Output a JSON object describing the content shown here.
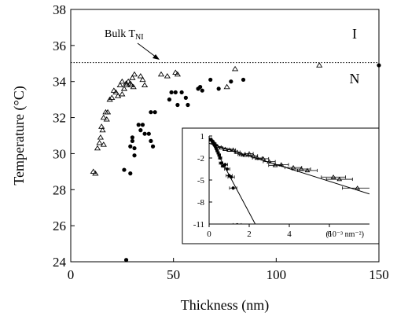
{
  "chart_data": [
    {
      "type": "scatter",
      "title": "",
      "xlabel": "Thickness (nm)",
      "ylabel": "Temperature (°C)",
      "xlim": [
        0,
        150
      ],
      "ylim": [
        24,
        38
      ],
      "xticks": [
        0,
        50,
        100,
        150
      ],
      "yticks": [
        24,
        26,
        28,
        30,
        32,
        34,
        36,
        38
      ],
      "grid": false,
      "reference_line": {
        "y": 35.05,
        "style": "dotted",
        "label_main": "Bulk T",
        "label_sub": "NI"
      },
      "region_labels": [
        "I",
        "N"
      ],
      "series": [
        {
          "marker": "open-triangle",
          "x": [
            11,
            12,
            13,
            14,
            14.5,
            15,
            15.5,
            16,
            16,
            17,
            17.5,
            18,
            19,
            20,
            21,
            22,
            23,
            24,
            25,
            25,
            26,
            27,
            27,
            28,
            29,
            29.5,
            30,
            30.5,
            31,
            34,
            35,
            36,
            44,
            47,
            51,
            52,
            76,
            80,
            121
          ],
          "y": [
            29.0,
            28.9,
            30.3,
            30.6,
            30.9,
            31.5,
            31.3,
            30.5,
            32.0,
            32.3,
            31.9,
            32.3,
            33.0,
            33.1,
            33.5,
            33.4,
            33.2,
            33.8,
            33.3,
            34.0,
            33.6,
            33.8,
            33.9,
            34.0,
            33.9,
            33.8,
            34.2,
            33.7,
            34.4,
            34.3,
            34.1,
            33.8,
            34.4,
            34.3,
            34.5,
            34.4,
            33.7,
            34.7,
            34.9
          ]
        },
        {
          "marker": "filled-circle",
          "x": [
            26,
            27,
            29,
            29,
            30,
            30,
            31,
            31,
            33,
            34,
            35,
            36,
            38,
            39,
            39,
            40,
            41,
            48,
            49,
            51,
            52,
            54,
            56,
            57,
            62,
            63,
            64,
            68,
            72,
            78,
            84,
            150
          ],
          "y": [
            29.1,
            24.1,
            28.9,
            30.4,
            30.7,
            30.9,
            30.3,
            29.9,
            31.6,
            31.3,
            31.6,
            31.1,
            31.1,
            32.3,
            30.7,
            30.4,
            32.3,
            33.0,
            33.4,
            33.4,
            32.7,
            33.4,
            33.1,
            32.7,
            33.6,
            33.7,
            33.5,
            34.1,
            33.6,
            34.0,
            34.1,
            34.9
          ]
        }
      ]
    },
    {
      "type": "scatter",
      "title": "",
      "xlabel": "(10⁻³ nm⁻²)",
      "ylabel": "",
      "xlim": [
        0,
        8
      ],
      "ylim": [
        -11,
        1
      ],
      "xticks": [
        0,
        2,
        4,
        6
      ],
      "yticks": [
        1,
        -2,
        -5,
        -8,
        -11
      ],
      "series": [
        {
          "marker": "open-triangle",
          "x": [
            0.1,
            0.2,
            0.3,
            0.4,
            0.6,
            0.8,
            1.0,
            1.2,
            1.4,
            1.6,
            1.8,
            2.0,
            2.2,
            2.4,
            2.7,
            3.0,
            3.3,
            3.6,
            4.2,
            4.6,
            4.9,
            6.2,
            6.5,
            7.4
          ],
          "y": [
            0.5,
            0.2,
            -0.1,
            -0.4,
            -0.6,
            -0.8,
            -0.9,
            -0.9,
            -1.2,
            -1.5,
            -1.6,
            -1.4,
            -1.7,
            -2.0,
            -2.1,
            -2.5,
            -3.0,
            -2.9,
            -3.3,
            -3.5,
            -3.7,
            -4.6,
            -4.9,
            -6.1
          ],
          "x_errors": [
            0.05,
            0.05,
            0.05,
            0.05,
            0.08,
            0.1,
            0.1,
            0.12,
            0.14,
            0.16,
            0.18,
            0.2,
            0.22,
            0.24,
            0.27,
            0.3,
            0.33,
            0.36,
            0.42,
            0.46,
            0.49,
            0.6,
            0.65,
            0.75
          ],
          "fit_line": {
            "x": [
              0,
              8
            ],
            "y": [
              0,
              -6.9
            ]
          }
        },
        {
          "marker": "filled-circle",
          "x": [
            0.1,
            0.15,
            0.2,
            0.25,
            0.3,
            0.35,
            0.4,
            0.45,
            0.5,
            0.55,
            0.6,
            0.7,
            0.8,
            0.9,
            1.0,
            1.1,
            1.2,
            1.4
          ],
          "y": [
            0.5,
            0.3,
            0.1,
            -0.2,
            -0.4,
            -0.7,
            -1.0,
            -1.3,
            -1.6,
            -2.0,
            -2.7,
            -3.1,
            -2.9,
            -3.5,
            -4.4,
            -4.6,
            -6.1,
            -11.1
          ],
          "x_errors": [
            0.02,
            0.02,
            0.03,
            0.04,
            0.04,
            0.05,
            0.06,
            0.06,
            0.07,
            0.08,
            0.09,
            0.1,
            0.12,
            0.13,
            0.15,
            0.16,
            0.18,
            0.2
          ],
          "fit_line": {
            "x": [
              0,
              2.3
            ],
            "y": [
              0.8,
              -11
            ]
          }
        }
      ]
    }
  ]
}
